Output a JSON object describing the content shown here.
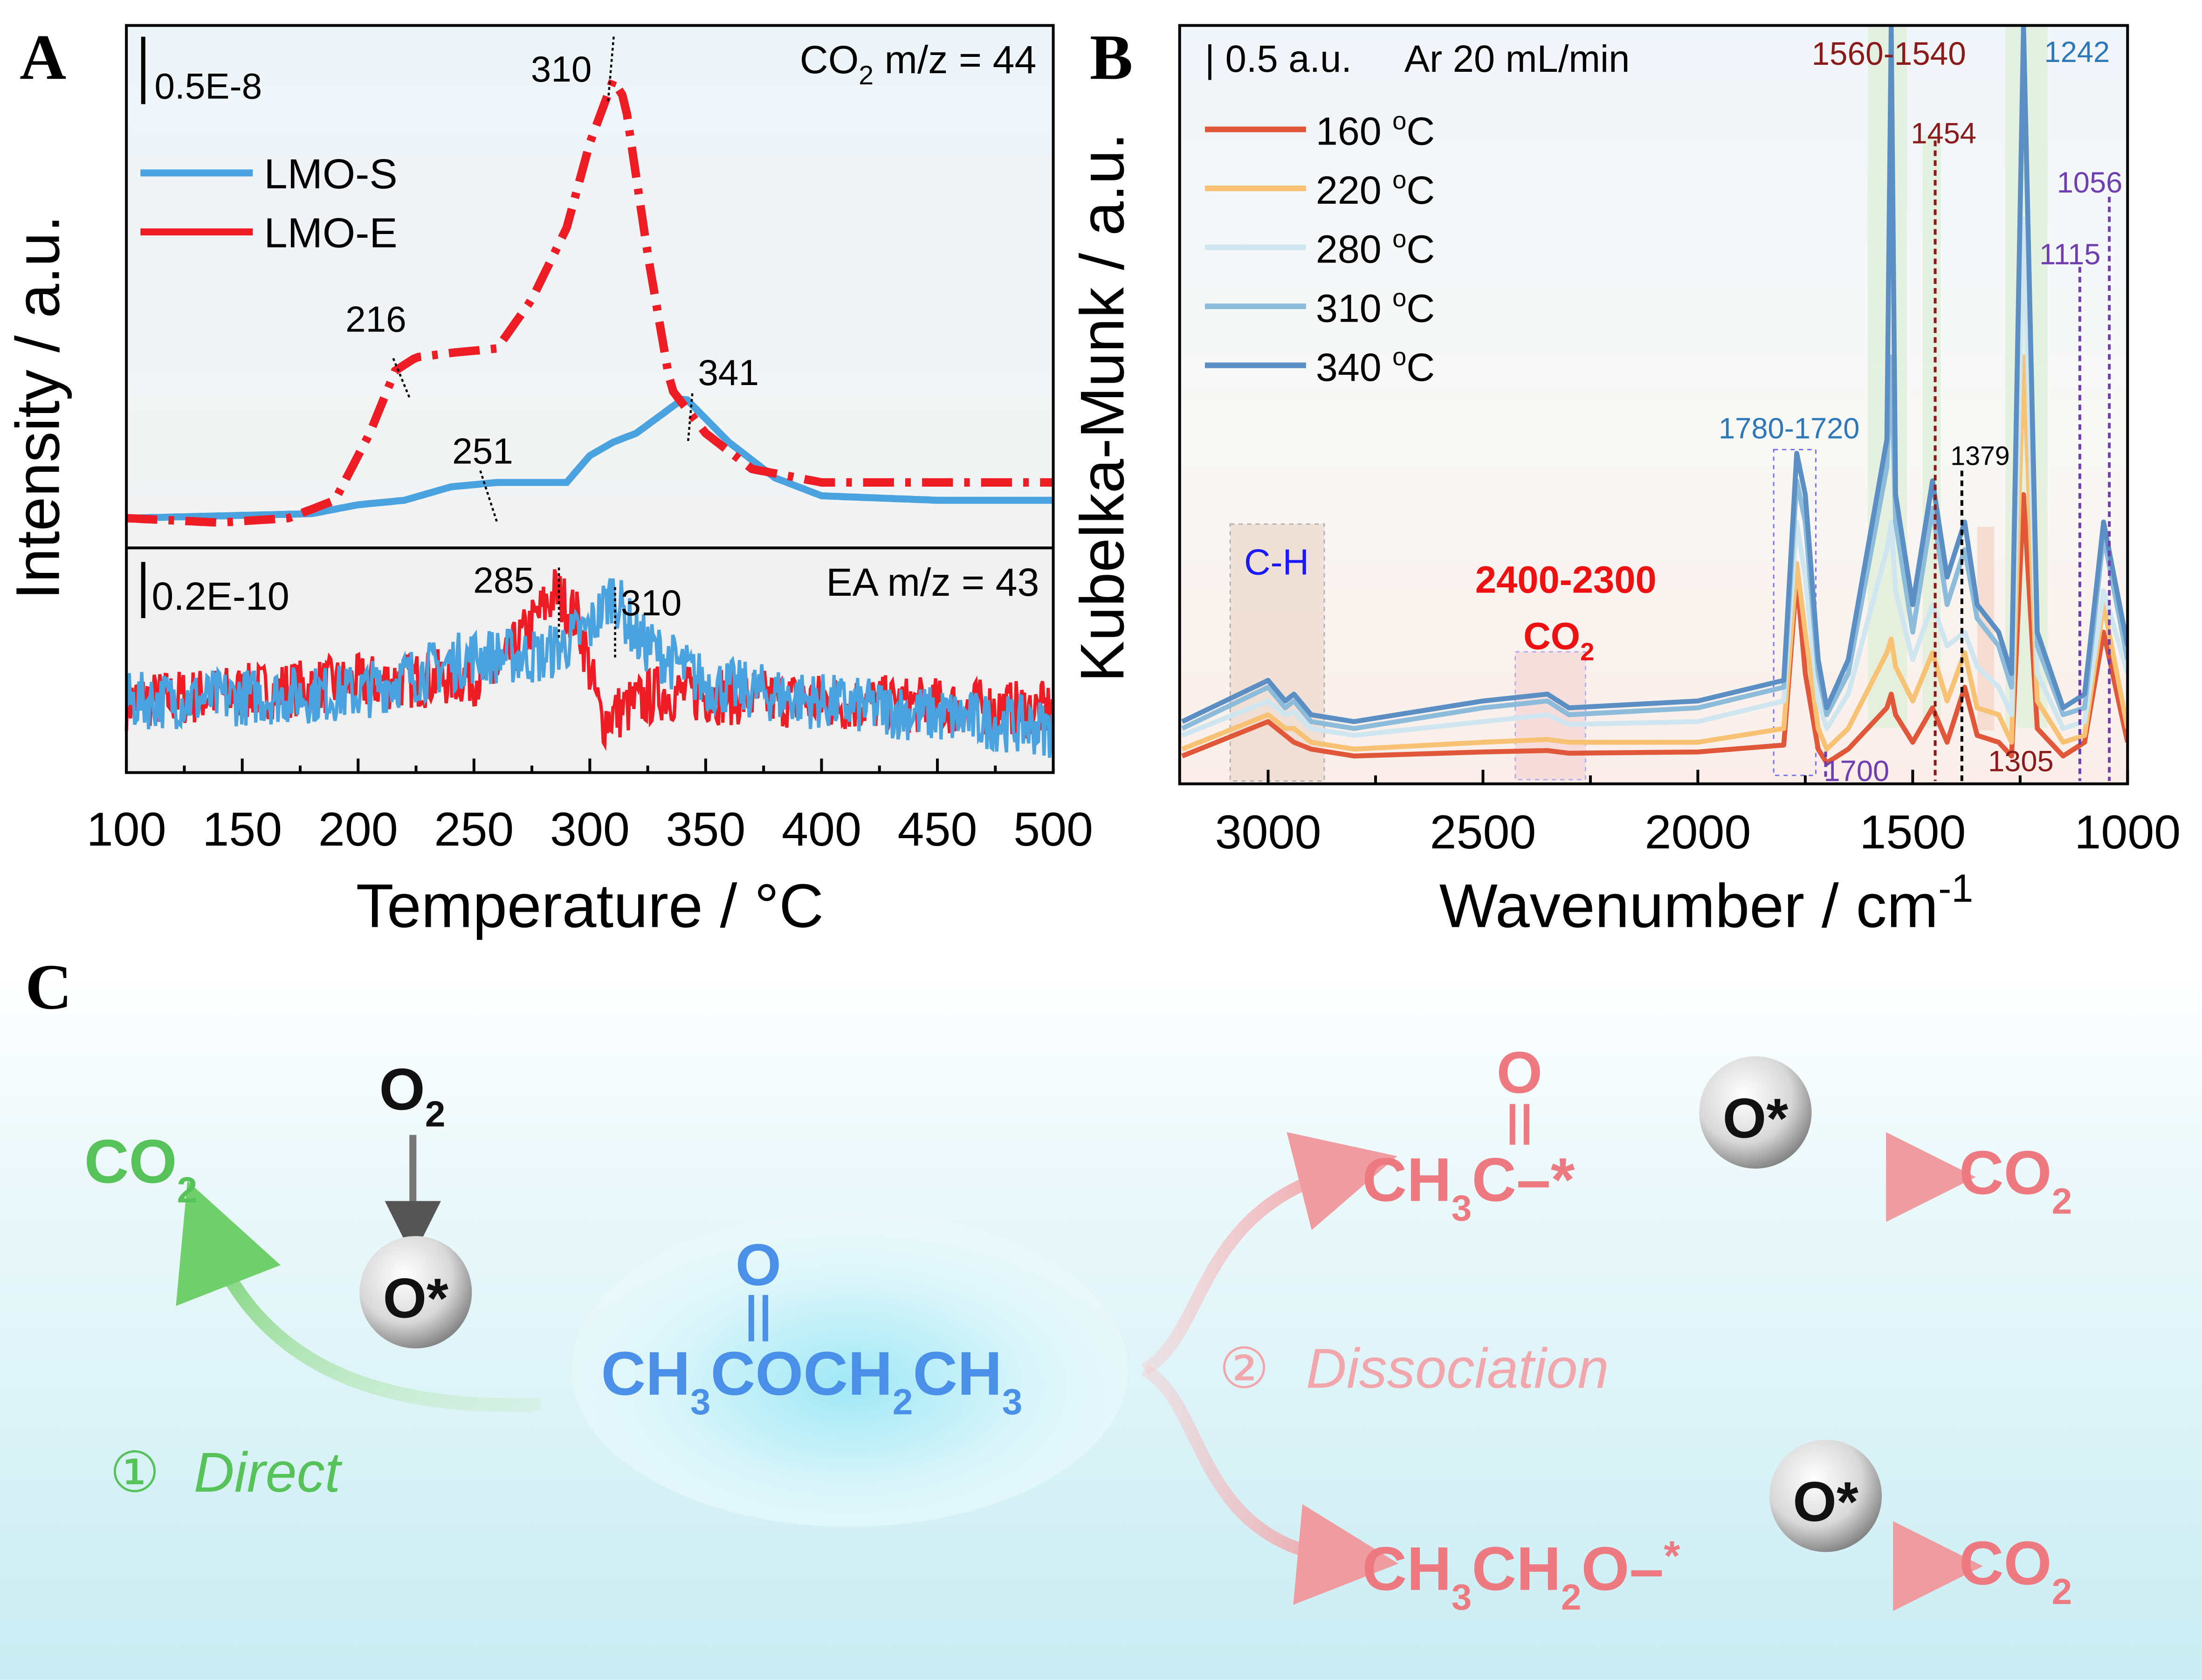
{
  "panel_labels": {
    "a": "A",
    "b": "B",
    "c": "C"
  },
  "chart_data": [
    {
      "type": "line",
      "panel": "A-top",
      "ylabel": "Intensity / a.u.",
      "xlabel": "Temperature / °C",
      "xlabel_main": "Temperature / ",
      "xlabel_sup": "o",
      "xlabel_unit": "C",
      "xlim": [
        100,
        500
      ],
      "xticks": [
        "100",
        "150",
        "200",
        "250",
        "300",
        "350",
        "400",
        "450",
        "500"
      ],
      "title_main": "CO",
      "title_sub": "2",
      "title_rest": " m/z = 44",
      "scale_bar": "0.5E-8",
      "legend": [
        "LMO-S",
        "LMO-E"
      ],
      "legend_position": "top-left",
      "colors": {
        "LMO-S": "#4aa3df",
        "LMO-E": "#ee1c24"
      },
      "annotations": [
        "310",
        "216",
        "341",
        "251"
      ],
      "series": [
        {
          "name": "LMO-S",
          "style": "solid",
          "points": [
            [
              100,
              0.01
            ],
            [
              180,
              0.02
            ],
            [
              200,
              0.04
            ],
            [
              220,
              0.05
            ],
            [
              240,
              0.08
            ],
            [
              260,
              0.09
            ],
            [
              290,
              0.09
            ],
            [
              300,
              0.15
            ],
            [
              310,
              0.18
            ],
            [
              320,
              0.2
            ],
            [
              341,
              0.28
            ],
            [
              360,
              0.18
            ],
            [
              380,
              0.1
            ],
            [
              400,
              0.06
            ],
            [
              450,
              0.05
            ],
            [
              500,
              0.05
            ]
          ]
        },
        {
          "name": "LMO-E",
          "style": "dash-dot",
          "points": [
            [
              100,
              0.01
            ],
            [
              140,
              0.0
            ],
            [
              170,
              0.01
            ],
            [
              190,
              0.05
            ],
            [
              205,
              0.2
            ],
            [
              216,
              0.34
            ],
            [
              225,
              0.37
            ],
            [
              240,
              0.38
            ],
            [
              260,
              0.39
            ],
            [
              275,
              0.5
            ],
            [
              290,
              0.66
            ],
            [
              300,
              0.85
            ],
            [
              310,
              0.99
            ],
            [
              315,
              0.95
            ],
            [
              325,
              0.6
            ],
            [
              335,
              0.3
            ],
            [
              350,
              0.2
            ],
            [
              370,
              0.12
            ],
            [
              400,
              0.09
            ],
            [
              500,
              0.09
            ]
          ]
        }
      ]
    },
    {
      "type": "line",
      "panel": "A-bottom",
      "xlim": [
        100,
        500
      ],
      "title": "EA m/z = 43",
      "scale_bar": "0.2E-10",
      "annotations": [
        "285",
        "310"
      ],
      "series": [
        {
          "name": "LMO-S",
          "points": [
            [
              100,
              0.35
            ],
            [
              200,
              0.4
            ],
            [
              250,
              0.6
            ],
            [
              280,
              0.6
            ],
            [
              300,
              0.75
            ],
            [
              310,
              0.95
            ],
            [
              320,
              0.7
            ],
            [
              350,
              0.45
            ],
            [
              400,
              0.35
            ],
            [
              500,
              0.2
            ]
          ]
        },
        {
          "name": "LMO-E",
          "points": [
            [
              100,
              0.35
            ],
            [
              200,
              0.45
            ],
            [
              260,
              0.5
            ],
            [
              285,
              0.95
            ],
            [
              295,
              0.8
            ],
            [
              305,
              0.25
            ],
            [
              330,
              0.4
            ],
            [
              400,
              0.35
            ],
            [
              500,
              0.3
            ]
          ]
        }
      ]
    },
    {
      "type": "line",
      "panel": "B",
      "ylabel": "Kubelka-Munk / a.u.",
      "xlabel_main": "Wavenumber / cm",
      "xlabel_sup": "-1",
      "xlim": [
        3200,
        1000
      ],
      "ylim": [
        0,
        5.4
      ],
      "xticks": [
        "3000",
        "2500",
        "2000",
        "1500",
        "1000"
      ],
      "scale_bar": "| 0.5 a.u.",
      "condition": "Ar 20 mL/min",
      "legend_position": "top-left",
      "x": [
        3200,
        3000,
        2960,
        2940,
        2900,
        2800,
        2500,
        2350,
        2300,
        2000,
        1800,
        1770,
        1750,
        1720,
        1700,
        1650,
        1560,
        1550,
        1540,
        1500,
        1454,
        1420,
        1379,
        1350,
        1300,
        1270,
        1242,
        1210,
        1150,
        1100,
        1056,
        1000
      ],
      "series": [
        {
          "name": "160 °C",
          "label": "160",
          "color": "#e0573a",
          "values": [
            0.1,
            0.35,
            0.25,
            0.2,
            0.15,
            0.1,
            0.13,
            0.14,
            0.12,
            0.13,
            0.18,
            1.4,
            0.7,
            0.15,
            0.05,
            0.15,
            0.45,
            0.55,
            0.4,
            0.2,
            0.45,
            0.2,
            0.6,
            0.25,
            0.2,
            0.1,
            2.0,
            0.3,
            0.1,
            0.2,
            1.0,
            0.2
          ]
        },
        {
          "name": "220 °C",
          "label": "220",
          "color": "#f7c274",
          "values": [
            0.15,
            0.4,
            0.3,
            0.3,
            0.2,
            0.15,
            0.2,
            0.22,
            0.2,
            0.2,
            0.3,
            1.5,
            1.0,
            0.3,
            0.15,
            0.3,
            0.85,
            0.95,
            0.75,
            0.5,
            0.85,
            0.5,
            0.85,
            0.45,
            0.4,
            0.2,
            3.0,
            0.5,
            0.2,
            0.25,
            1.2,
            0.3
          ]
        },
        {
          "name": "280 °C",
          "label": "280",
          "color": "#cfe6f0",
          "values": [
            0.25,
            0.5,
            0.4,
            0.42,
            0.3,
            0.25,
            0.35,
            0.4,
            0.33,
            0.35,
            0.5,
            1.8,
            1.4,
            0.5,
            0.3,
            0.55,
            1.6,
            1.8,
            1.3,
            0.8,
            1.2,
            0.9,
            1.0,
            0.75,
            0.6,
            0.4,
            4.0,
            0.7,
            0.3,
            0.35,
            1.3,
            0.7
          ]
        },
        {
          "name": "310 °C",
          "label": "310",
          "color": "#8dbcdb",
          "values": [
            0.3,
            0.6,
            0.45,
            0.5,
            0.35,
            0.3,
            0.45,
            0.5,
            0.4,
            0.45,
            0.6,
            2.1,
            1.8,
            0.7,
            0.4,
            0.7,
            2.2,
            3.0,
            1.8,
            1.0,
            1.9,
            1.2,
            1.6,
            1.1,
            0.9,
            0.6,
            5.4,
            0.9,
            0.4,
            0.45,
            1.7,
            0.8
          ]
        },
        {
          "name": "340 °C",
          "label": "340",
          "color": "#5b8fc4",
          "values": [
            0.35,
            0.65,
            0.5,
            0.55,
            0.4,
            0.35,
            0.5,
            0.55,
            0.45,
            0.5,
            0.65,
            2.3,
            2.0,
            0.8,
            0.45,
            0.8,
            2.4,
            5.4,
            2.0,
            1.2,
            2.1,
            1.4,
            1.8,
            1.2,
            1.0,
            0.7,
            5.4,
            1.0,
            0.45,
            0.55,
            1.8,
            0.9
          ]
        }
      ],
      "unit_sup": "o",
      "unit": "C",
      "annotations": {
        "ch": "C-H",
        "co2_range": "2400-2300",
        "co2_main": "CO",
        "co2_sub": "2",
        "a1780": "1780-1720",
        "a1560": "1560-1540",
        "a1454": "1454",
        "a1379": "1379",
        "a1242": "1242",
        "a1056": "1056",
        "a1115": "1115",
        "a1700": "1700",
        "a1305": "1305"
      }
    }
  ],
  "panel_c": {
    "direct": {
      "circle": "①",
      "label": "Direct",
      "co": "CO",
      "sub": "2"
    },
    "o2": {
      "main": "O",
      "sub": "2"
    },
    "ostar": "O*",
    "molecule": {
      "o": "O",
      "p1": "CH",
      "s1": "3",
      "p2": "COCH",
      "s2": "2",
      "p3": "CH",
      "s3": "3"
    },
    "dissociation": {
      "circle": "②",
      "label": "Dissociation"
    },
    "top": {
      "o": "O",
      "p1": "CH",
      "s1": "3",
      "p2": "C–*",
      "co": "CO",
      "sub": "2"
    },
    "bottom": {
      "p1": "CH",
      "s1": "3",
      "p2": "CH",
      "s2": "2",
      "p3": "O–",
      "star": "*",
      "co": "CO",
      "sub": "2"
    },
    "colors": {
      "green": "#58c25a",
      "blue": "#4a8fe8",
      "pink": "#ec7a80"
    }
  }
}
